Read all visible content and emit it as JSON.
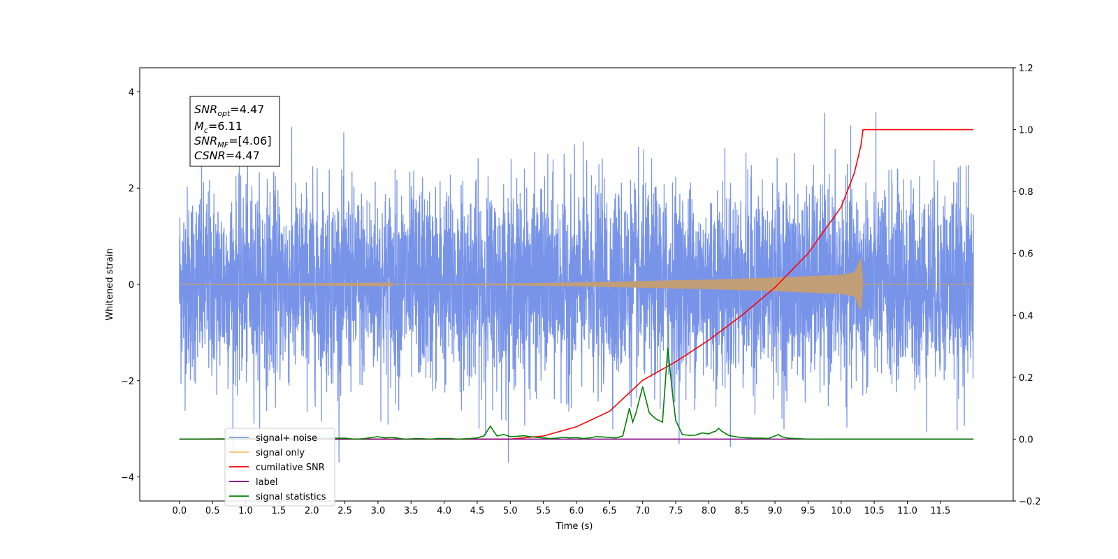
{
  "chart_data": {
    "type": "line",
    "xlabel": "Time (s)",
    "ylabel": "Whitened strain",
    "xlim": [
      -0.6,
      12.6
    ],
    "ylim": [
      -4.5,
      4.5
    ],
    "y2lim": [
      -0.2,
      1.2
    ],
    "x_ticks": [
      "0.0",
      "0.5",
      "1.0",
      "1.5",
      "2.0",
      "2.5",
      "3.0",
      "3.5",
      "4.0",
      "4.5",
      "5.0",
      "5.5",
      "6.0",
      "6.5",
      "7.0",
      "7.5",
      "8.0",
      "8.5",
      "9.0",
      "9.5",
      "10.0",
      "10.5",
      "11.0",
      "11.5"
    ],
    "y_ticks": [
      "−4",
      "−2",
      "0",
      "2",
      "4"
    ],
    "y2_ticks": [
      "−0.2",
      "0.0",
      "0.2",
      "0.4",
      "0.6",
      "0.8",
      "1.0",
      "1.2"
    ],
    "annotation": {
      "line1": {
        "name": "SNR",
        "sub": "opt",
        "value": "=4.47"
      },
      "line2": {
        "name": "M",
        "sub": "c",
        "value": "=6.11"
      },
      "line3": {
        "name": "SNR",
        "sub": "MF",
        "value": "=[4.06]"
      },
      "line4": {
        "name": "CSNR",
        "sub": "",
        "value": "=4.47"
      }
    },
    "legend": {
      "position": "lower-left",
      "entries": [
        {
          "label": "signal+ noise",
          "color": "#7894e8"
        },
        {
          "label": "signal only",
          "color": "#f5c26b"
        },
        {
          "label": "cumilative SNR",
          "color": "#ff0000"
        },
        {
          "label": "label",
          "color": "#800080"
        },
        {
          "label": "signal statistics",
          "color": "#008000"
        }
      ]
    },
    "series": [
      {
        "name": "signal+ noise",
        "axis": "left",
        "description_range": [
          -3.7,
          4.1
        ],
        "x_range": [
          0.0,
          12.0
        ]
      },
      {
        "name": "signal only",
        "axis": "left",
        "x_range": [
          0.0,
          12.0
        ],
        "envelope": {
          "x": [
            0.0,
            4.0,
            5.0,
            6.0,
            7.0,
            8.0,
            9.0,
            9.5,
            10.0,
            10.2,
            10.3,
            10.33,
            12.0
          ],
          "amp": [
            0.0,
            0.01,
            0.02,
            0.04,
            0.07,
            0.1,
            0.14,
            0.17,
            0.2,
            0.25,
            0.55,
            0.0,
            0.0
          ]
        }
      },
      {
        "name": "cumilative SNR",
        "axis": "right",
        "x": [
          0.0,
          5.0,
          5.5,
          6.0,
          6.5,
          7.0,
          7.5,
          8.0,
          8.5,
          9.0,
          9.5,
          10.0,
          10.2,
          10.3,
          10.33,
          12.0
        ],
        "y": [
          0.0,
          0.0,
          0.01,
          0.04,
          0.09,
          0.19,
          0.25,
          0.32,
          0.4,
          0.49,
          0.6,
          0.75,
          0.86,
          0.95,
          1.0,
          1.0
        ]
      },
      {
        "name": "label",
        "axis": "right",
        "x": [
          0.0,
          12.0
        ],
        "y": [
          0.0,
          0.0
        ]
      },
      {
        "name": "signal statistics",
        "axis": "right",
        "x": [
          0.0,
          2.5,
          2.6,
          2.7,
          2.8,
          2.9,
          3.0,
          3.1,
          3.2,
          3.3,
          3.4,
          3.5,
          3.6,
          3.7,
          3.8,
          3.9,
          4.0,
          4.1,
          4.2,
          4.3,
          4.4,
          4.5,
          4.6,
          4.7,
          4.75,
          4.8,
          4.9,
          5.0,
          5.1,
          5.2,
          5.3,
          5.4,
          5.5,
          5.6,
          5.7,
          5.8,
          5.9,
          6.0,
          6.1,
          6.2,
          6.3,
          6.4,
          6.5,
          6.6,
          6.7,
          6.8,
          6.85,
          6.9,
          7.0,
          7.1,
          7.2,
          7.3,
          7.38,
          7.45,
          7.5,
          7.6,
          7.7,
          7.8,
          7.9,
          8.0,
          8.05,
          8.1,
          8.15,
          8.2,
          8.3,
          8.4,
          8.5,
          8.6,
          8.7,
          8.8,
          8.9,
          9.0,
          9.05,
          9.1,
          9.2,
          9.3,
          9.5,
          10.0,
          11.0,
          12.0
        ],
        "y": [
          0.0,
          0.003,
          0.001,
          0.0,
          0.002,
          0.005,
          0.008,
          0.004,
          0.006,
          0.003,
          0.0,
          0.001,
          0.002,
          0.001,
          0.0,
          0.002,
          0.002,
          0.002,
          0.0,
          0.001,
          0.002,
          0.004,
          0.01,
          0.042,
          0.025,
          0.01,
          0.015,
          0.008,
          0.009,
          0.011,
          0.008,
          0.006,
          0.004,
          0.002,
          0.003,
          0.006,
          0.004,
          0.005,
          0.002,
          0.004,
          0.008,
          0.007,
          0.005,
          0.004,
          0.01,
          0.1,
          0.055,
          0.085,
          0.17,
          0.085,
          0.065,
          0.055,
          0.295,
          0.15,
          0.06,
          0.015,
          0.012,
          0.013,
          0.02,
          0.017,
          0.022,
          0.025,
          0.035,
          0.025,
          0.012,
          0.008,
          0.005,
          0.004,
          0.003,
          0.003,
          0.002,
          0.01,
          0.015,
          0.008,
          0.003,
          0.002,
          0.0,
          0.0,
          0.0,
          0.0
        ]
      }
    ]
  }
}
